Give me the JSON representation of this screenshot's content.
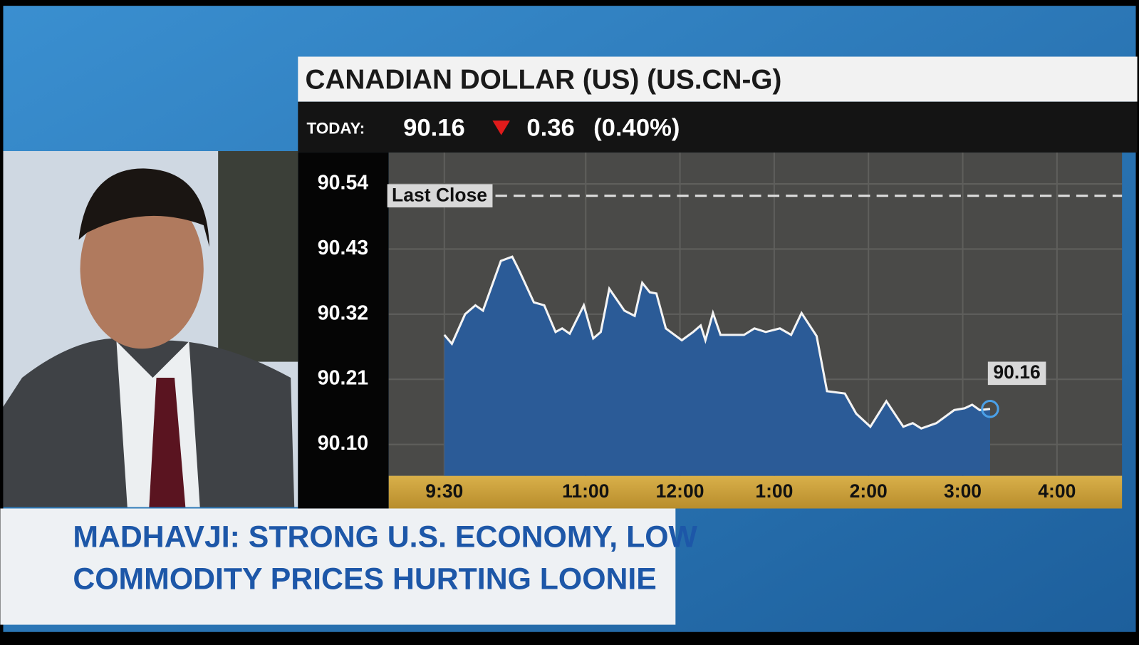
{
  "chart_data": {
    "type": "line",
    "title": "CANADIAN DOLLAR (US) (US.CN-G)",
    "today": {
      "label": "TODAY:",
      "price": "90.16",
      "change": "0.36",
      "percent": "(0.40%)"
    },
    "last_close": {
      "label": "Last Close",
      "value": 90.52
    },
    "end_label": "90.16",
    "x": [
      9.5,
      9.58,
      9.72,
      9.83,
      9.91,
      10.1,
      10.22,
      10.29,
      10.45,
      10.56,
      10.68,
      10.75,
      10.83,
      10.98,
      11.08,
      11.16,
      11.25,
      11.41,
      11.52,
      11.6,
      11.68,
      11.75,
      11.85,
      12.02,
      12.14,
      12.22,
      12.27,
      12.35,
      12.43,
      12.68,
      12.79,
      12.91,
      13.06,
      13.18,
      13.29,
      13.45,
      13.56,
      13.75,
      13.87,
      14.02,
      14.19,
      14.37,
      14.47,
      14.56,
      14.72,
      14.91,
      15.02,
      15.1,
      15.18,
      15.29
    ],
    "values": [
      90.285,
      90.27,
      90.32,
      90.335,
      90.326,
      90.41,
      90.417,
      90.395,
      90.34,
      90.335,
      90.29,
      90.296,
      90.287,
      90.335,
      90.279,
      90.29,
      90.363,
      90.326,
      90.317,
      90.373,
      90.357,
      90.355,
      90.296,
      90.276,
      90.29,
      90.301,
      90.276,
      90.322,
      90.285,
      90.285,
      90.296,
      90.29,
      90.296,
      90.285,
      90.322,
      90.283,
      90.19,
      90.186,
      90.152,
      90.13,
      90.173,
      90.13,
      90.136,
      90.127,
      90.136,
      90.158,
      90.161,
      90.167,
      90.158,
      90.16
    ],
    "color": "#2b5b97",
    "xlim": [
      8.91,
      16.69
    ],
    "xticks": [
      {
        "value": 9.5,
        "label": "9:30"
      },
      {
        "value": 11,
        "label": "11:00"
      },
      {
        "value": 12,
        "label": "12:00"
      },
      {
        "value": 13,
        "label": "1:00"
      },
      {
        "value": 14,
        "label": "2:00"
      },
      {
        "value": 15,
        "label": "3:00"
      },
      {
        "value": 16,
        "label": "4:00"
      }
    ],
    "ylim": [
      90.047,
      90.593
    ],
    "yticks": [
      90.54,
      90.43,
      90.32,
      90.21,
      {
        "value": 90.1,
        "label": "90.10"
      }
    ],
    "grid": true
  },
  "headline": [
    "MADHAVJI: STRONG U.S. ECONOMY, LOW",
    "COMMODITY PRICES HURTING LOONIE"
  ]
}
